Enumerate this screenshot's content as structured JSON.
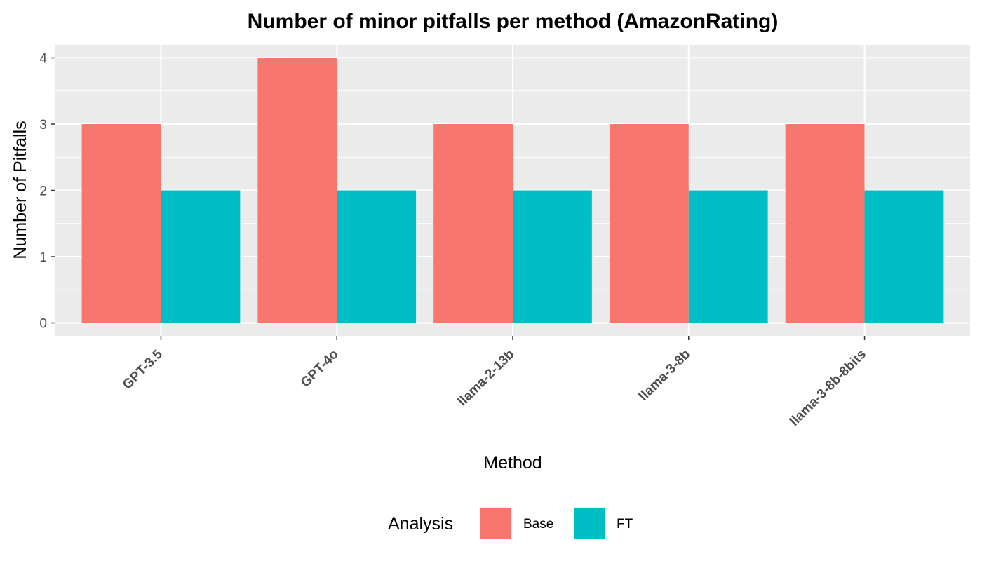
{
  "chart_data": {
    "type": "bar",
    "title": "Number of minor pitfalls per method (AmazonRating)",
    "xlabel": "Method",
    "ylabel": "Number of Pitfalls",
    "categories": [
      "GPT-3.5",
      "GPT-4o",
      "llama-2-13b",
      "llama-3-8b",
      "llama-3-8b-8bits"
    ],
    "series": [
      {
        "name": "Base",
        "values": [
          3,
          4,
          3,
          3,
          3
        ],
        "color": "#F8766D"
      },
      {
        "name": "FT",
        "values": [
          2,
          2,
          2,
          2,
          2
        ],
        "color": "#00BFC4"
      }
    ],
    "ylim": [
      0,
      4
    ],
    "yticks": [
      0,
      1,
      2,
      3,
      4
    ],
    "grid": true,
    "legend": {
      "title": "Analysis",
      "position": "bottom"
    },
    "panel_background": "#EBEBEB",
    "grid_color": "#FFFFFF"
  }
}
